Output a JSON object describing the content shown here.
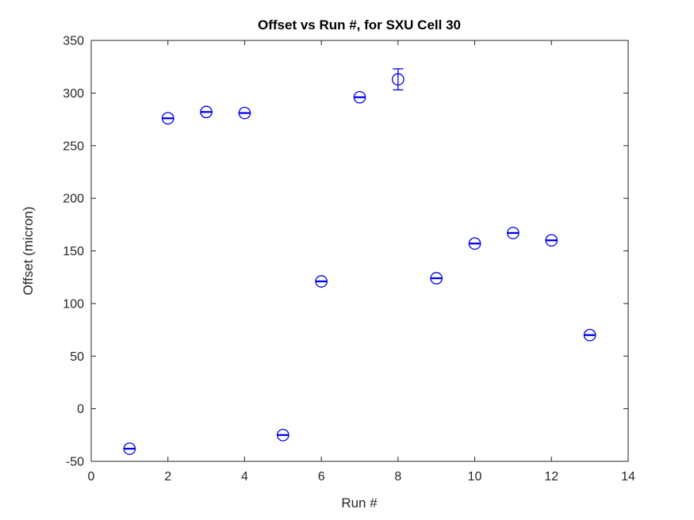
{
  "chart_data": {
    "type": "scatter",
    "style": "matlab-errorbar",
    "title": "Offset vs Run #, for SXU Cell 30",
    "xlabel": "Run #",
    "ylabel": "Offset (micron)",
    "xlim": [
      0,
      14
    ],
    "ylim": [
      -50,
      350
    ],
    "xticks": [
      0,
      2,
      4,
      6,
      8,
      10,
      12,
      14
    ],
    "yticks": [
      -50,
      0,
      50,
      100,
      150,
      200,
      250,
      300,
      350
    ],
    "grid": false,
    "legend": "none",
    "marker": "open-circle",
    "marker_color": "#0000EE",
    "axis_color": "#262626",
    "background_color": "#ffffff",
    "x": [
      1,
      2,
      3,
      4,
      5,
      6,
      7,
      8,
      9,
      10,
      11,
      12,
      13
    ],
    "y": [
      -38,
      276,
      282,
      281,
      -25,
      121,
      296,
      313,
      124,
      157,
      167,
      160,
      70
    ],
    "yerr": [
      1.5,
      1,
      2,
      2,
      1.5,
      1.5,
      1.5,
      10,
      1.5,
      2,
      2,
      1.5,
      1.5
    ]
  }
}
